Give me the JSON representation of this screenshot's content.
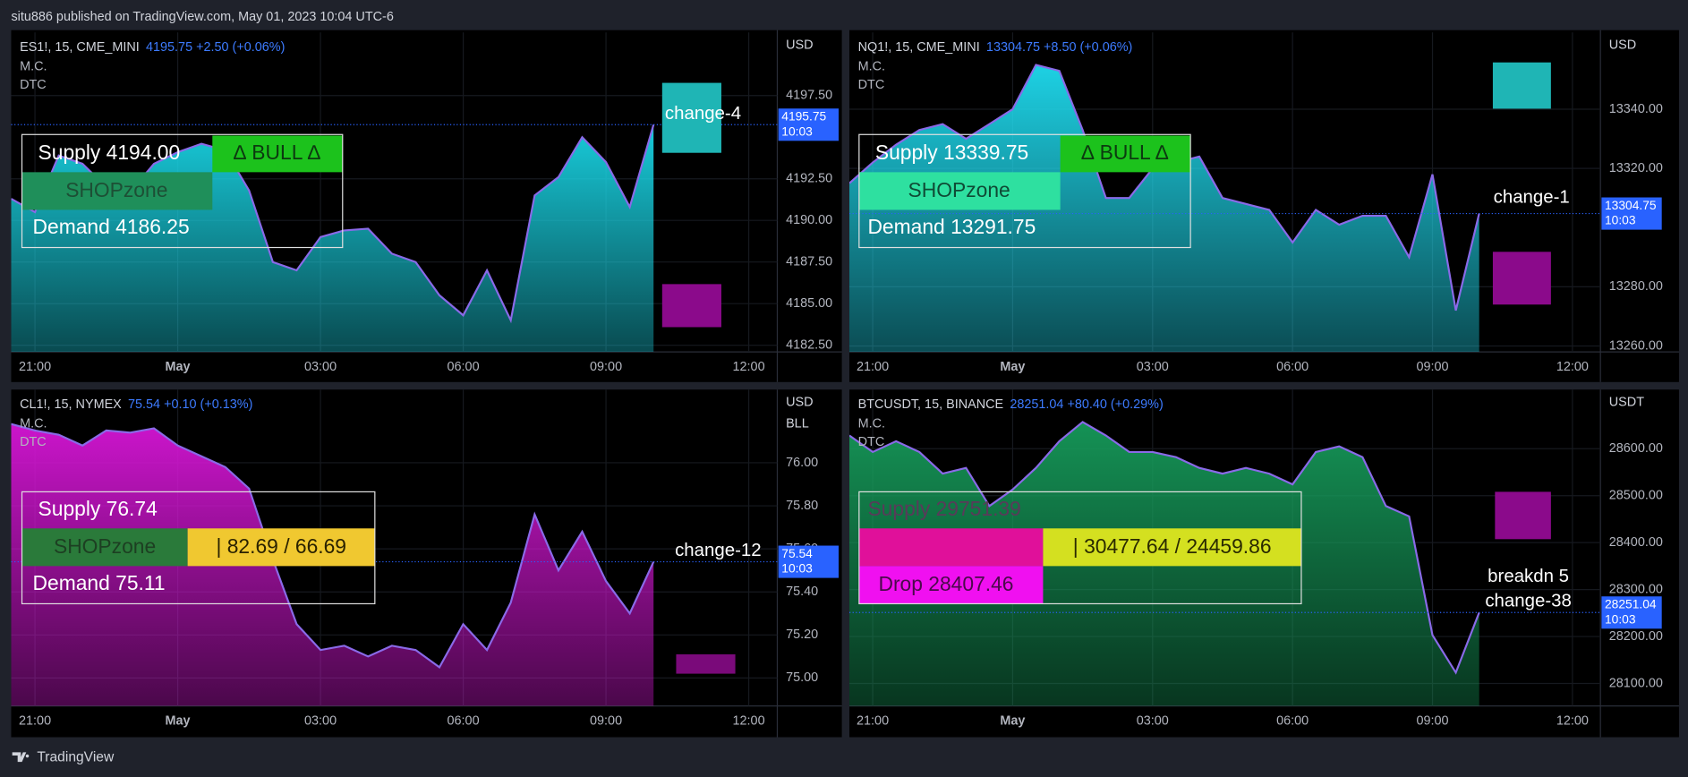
{
  "header": "situ886 published on TradingView.com, May 01, 2023 10:04 UTC-6",
  "footer": "TradingView",
  "chart_data": [
    {
      "type": "area",
      "symbol": "ES1!, 15, CME_MINI",
      "quote": "4195.75  +2.50 (+0.06%)",
      "indicators": [
        "M.C.",
        "DTC"
      ],
      "currency": "USD",
      "x": [
        -0.5,
        0,
        0.5,
        1,
        1.5,
        2,
        2.5,
        3,
        3.5,
        4,
        4.5,
        5,
        5.5,
        6,
        6.5,
        7,
        7.5,
        8,
        8.5,
        9,
        9.5,
        10,
        10.5,
        11,
        11.5,
        12,
        12.5,
        13
      ],
      "series": [
        {
          "color": "#19d6e6",
          "values": [
            4191.3,
            4190.5,
            4193.9,
            4193.4,
            4192.0,
            4191.7,
            4193.4,
            4194.1,
            4194.6,
            4194.2,
            4191.8,
            4187.5,
            4187.0,
            4189.0,
            4189.4,
            4189.5,
            4188.0,
            4187.5,
            4185.5,
            4184.3,
            4187.0,
            4184.0,
            4191.5,
            4192.6,
            4195.0,
            4193.5,
            4190.8,
            4195.75
          ]
        }
      ],
      "xlim": [
        -0.5,
        15.6
      ],
      "ylim": [
        4182.1,
        4201.3
      ],
      "xticks": [
        {
          "value": 0,
          "label": "21:00"
        },
        {
          "value": 3,
          "label": "May"
        },
        {
          "value": 6,
          "label": "03:00"
        },
        {
          "value": 9,
          "label": "06:00"
        },
        {
          "value": 12,
          "label": "09:00"
        },
        {
          "value": 15,
          "label": "12:00"
        }
      ],
      "yticks": [
        {
          "value": 4197.5,
          "label": "4197.50"
        },
        {
          "value": 4192.5,
          "label": "4192.50"
        },
        {
          "value": 4190,
          "label": "4190.00"
        },
        {
          "value": 4187.5,
          "label": "4187.50"
        },
        {
          "value": 4185,
          "label": "4185.00"
        },
        {
          "value": 4182.5,
          "label": "4182.50"
        }
      ],
      "price_tag": 4195.75,
      "price_time": "10:03",
      "infobox": [
        "Supply  4194.00",
        "∆ BULL ∆",
        "SHOPzone",
        "Demand  4186.25"
      ],
      "annotations": [
        "change-4"
      ],
      "grid": true
    },
    {
      "type": "area",
      "symbol": "NQ1!, 15, CME_MINI",
      "quote": "13304.75  +8.50 (+0.06%)",
      "indicators": [
        "M.C.",
        "DTC"
      ],
      "currency": "USD",
      "x": [
        -0.5,
        0,
        0.5,
        1,
        1.5,
        2,
        2.5,
        3,
        3.5,
        4,
        4.5,
        5,
        5.5,
        6,
        6.5,
        7,
        7.5,
        8,
        8.5,
        9,
        9.5,
        10,
        10.5,
        11,
        11.5,
        12,
        12.5,
        13
      ],
      "series": [
        {
          "color": "#1fdcf0",
          "values": [
            13315,
            13322,
            13328,
            13333,
            13335,
            13330,
            13335,
            13340,
            13355,
            13353,
            13333,
            13310,
            13310,
            13320,
            13322,
            13324,
            13310,
            13308,
            13306,
            13295,
            13306,
            13301,
            13304,
            13304,
            13290,
            13318,
            13272,
            13304.75
          ]
        }
      ],
      "xlim": [
        -0.5,
        15.6
      ],
      "ylim": [
        13258,
        13366
      ],
      "xticks": [
        {
          "value": 0,
          "label": "21:00"
        },
        {
          "value": 3,
          "label": "May"
        },
        {
          "value": 6,
          "label": "03:00"
        },
        {
          "value": 9,
          "label": "06:00"
        },
        {
          "value": 12,
          "label": "09:00"
        },
        {
          "value": 15,
          "label": "12:00"
        }
      ],
      "yticks": [
        {
          "value": 13340,
          "label": "13340.00"
        },
        {
          "value": 13320,
          "label": "13320.00"
        },
        {
          "value": 13280,
          "label": "13280.00"
        },
        {
          "value": 13260,
          "label": "13260.00"
        }
      ],
      "price_tag": 13304.75,
      "price_time": "10:03",
      "infobox": [
        "Supply  13339.75",
        "∆ BULL ∆",
        "SHOPzone",
        "Demand  13291.75"
      ],
      "annotations": [
        "change-1"
      ],
      "grid": true
    },
    {
      "type": "area",
      "symbol": "CL1!, 15, NYMEX",
      "quote": "75.54  +0.10 (+0.13%)",
      "indicators": [
        "M.C.",
        "DTC"
      ],
      "currency": "USD",
      "unit": "BLL",
      "x": [
        -0.5,
        0,
        0.5,
        1,
        1.5,
        2,
        2.5,
        3,
        3.5,
        4,
        4.5,
        5,
        5.5,
        6,
        6.5,
        7,
        7.5,
        8,
        8.5,
        9,
        9.5,
        10,
        10.5,
        11,
        11.5,
        12,
        12.5,
        13
      ],
      "series": [
        {
          "color": "#d616d6",
          "values": [
            76.18,
            76.15,
            76.13,
            76.08,
            76.15,
            76.14,
            76.16,
            76.08,
            76.03,
            75.98,
            75.88,
            75.55,
            75.25,
            75.13,
            75.15,
            75.1,
            75.15,
            75.13,
            75.05,
            75.25,
            75.13,
            75.35,
            75.76,
            75.5,
            75.68,
            75.45,
            75.3,
            75.54
          ]
        }
      ],
      "xlim": [
        -0.5,
        15.6
      ],
      "ylim": [
        74.87,
        76.34
      ],
      "xticks": [
        {
          "value": 0,
          "label": "21:00"
        },
        {
          "value": 3,
          "label": "May"
        },
        {
          "value": 6,
          "label": "03:00"
        },
        {
          "value": 9,
          "label": "06:00"
        },
        {
          "value": 12,
          "label": "09:00"
        },
        {
          "value": 15,
          "label": "12:00"
        }
      ],
      "yticks": [
        {
          "value": 76,
          "label": "76.00"
        },
        {
          "value": 75.8,
          "label": "75.80"
        },
        {
          "value": 75.6,
          "label": "75.60"
        },
        {
          "value": 75.4,
          "label": "75.40"
        },
        {
          "value": 75.2,
          "label": "75.20"
        },
        {
          "value": 75,
          "label": "75.00"
        }
      ],
      "price_tag": 75.54,
      "price_time": "10:03",
      "infobox": [
        "Supply  76.74",
        "SHOPzone",
        "|  82.69 / 66.69",
        "Demand  75.11"
      ],
      "annotations": [
        "change-12"
      ],
      "grid": true
    },
    {
      "type": "area",
      "symbol": "BTCUSDT, 15, BINANCE",
      "quote": "28251.04  +80.40 (+0.29%)",
      "indicators": [
        "M.C.",
        "DTC"
      ],
      "currency": "USDT",
      "x": [
        -0.5,
        0,
        0.5,
        1,
        1.5,
        2,
        2.5,
        3,
        3.5,
        4,
        4.5,
        5,
        5.5,
        6,
        6.5,
        7,
        7.5,
        8,
        8.5,
        9,
        9.5,
        10,
        10.5,
        11,
        11.5,
        12,
        12.5,
        13
      ],
      "series": [
        {
          "color": "#169a5a",
          "values": [
            28628,
            28593,
            28616,
            28593,
            28547,
            28559,
            28478,
            28513,
            28559,
            28616,
            28657,
            28628,
            28593,
            28593,
            28582,
            28559,
            28547,
            28559,
            28547,
            28524,
            28593,
            28605,
            28582,
            28478,
            28456,
            28203,
            28123,
            28251.04
          ]
        }
      ],
      "xlim": [
        -0.5,
        15.6
      ],
      "ylim": [
        28052,
        28726
      ],
      "xticks": [
        {
          "value": 0,
          "label": "21:00"
        },
        {
          "value": 3,
          "label": "May"
        },
        {
          "value": 6,
          "label": "03:00"
        },
        {
          "value": 9,
          "label": "06:00"
        },
        {
          "value": 12,
          "label": "09:00"
        },
        {
          "value": 15,
          "label": "12:00"
        }
      ],
      "yticks": [
        {
          "value": 28600,
          "label": "28600.00"
        },
        {
          "value": 28500,
          "label": "28500.00"
        },
        {
          "value": 28400,
          "label": "28400.00"
        },
        {
          "value": 28300,
          "label": "28300.00"
        },
        {
          "value": 28200,
          "label": "28200.00"
        },
        {
          "value": 28100,
          "label": "28100.00"
        }
      ],
      "price_tag": 28251.04,
      "price_time": "10:03",
      "infobox": [
        "Supply  29751.39",
        "|  30477.64 / 24459.86",
        "Drop  28407.46"
      ],
      "annotations": [
        "breakdn 5",
        "change-38"
      ],
      "grid": true
    }
  ]
}
